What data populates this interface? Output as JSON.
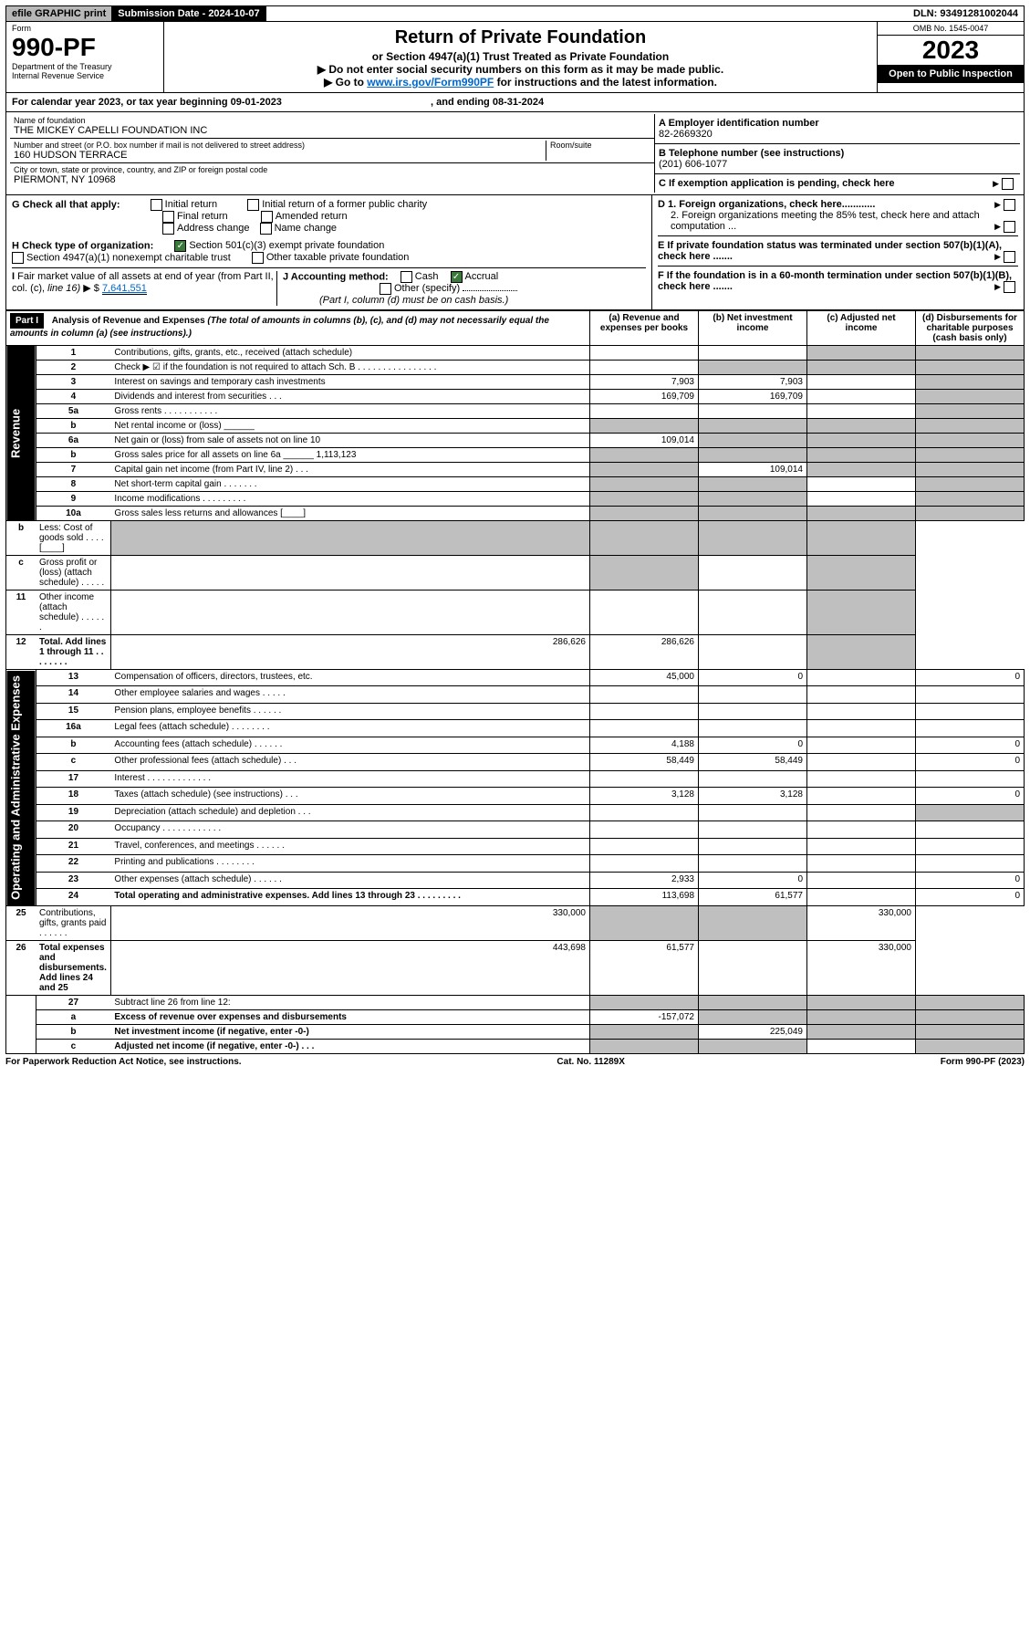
{
  "top": {
    "efile": "efile GRAPHIC print",
    "sub_label": "Submission Date - 2024-10-07",
    "dln": "DLN: 93491281002044"
  },
  "header": {
    "form": "Form",
    "formno": "990-PF",
    "dept": "Department of the Treasury",
    "irs": "Internal Revenue Service",
    "title": "Return of Private Foundation",
    "subtitle": "or Section 4947(a)(1) Trust Treated as Private Foundation",
    "warn1": "▶ Do not enter social security numbers on this form as it may be made public.",
    "warn2": "▶ Go to ",
    "link": "www.irs.gov/Form990PF",
    "warn3": " for instructions and the latest information.",
    "omb": "OMB No. 1545-0047",
    "year": "2023",
    "open": "Open to Public Inspection"
  },
  "period": {
    "pre": "For calendar year 2023, or tax year beginning ",
    "start": "09-01-2023",
    "mid": ", and ending ",
    "end": "08-31-2024"
  },
  "id": {
    "name_lbl": "Name of foundation",
    "name": "THE MICKEY CAPELLI FOUNDATION INC",
    "addr_lbl": "Number and street (or P.O. box number if mail is not delivered to street address)",
    "room_lbl": "Room/suite",
    "addr": "160 HUDSON TERRACE",
    "city_lbl": "City or town, state or province, country, and ZIP or foreign postal code",
    "city": "PIERMONT, NY  10968",
    "ein_lbl": "A Employer identification number",
    "ein": "82-2669320",
    "tel_lbl": "B Telephone number (see instructions)",
    "tel": "(201) 606-1077",
    "c": "C If exemption application is pending, check here",
    "d1": "D 1. Foreign organizations, check here............",
    "d2": "2. Foreign organizations meeting the 85% test, check here and attach computation ...",
    "e": "E  If private foundation status was terminated under section 507(b)(1)(A), check here .......",
    "f": "F  If the foundation is in a 60-month termination under section 507(b)(1)(B), check here ......."
  },
  "g": {
    "lbl": "G Check all that apply:",
    "initial": "Initial return",
    "initial2": "Initial return of a former public charity",
    "final": "Final return",
    "amended": "Amended return",
    "addrchg": "Address change",
    "namechg": "Name change"
  },
  "h": {
    "lbl": "H Check type of organization:",
    "s501": "Section 501(c)(3) exempt private foundation",
    "s4947": "Section 4947(a)(1) nonexempt charitable trust",
    "other": "Other taxable private foundation"
  },
  "i": {
    "lbl": "I Fair market value of all assets at end of year (from Part II, col. (c), line 16) ▶ $",
    "val": "7,641,551"
  },
  "j": {
    "lbl": "J Accounting method:",
    "cash": "Cash",
    "accrual": "Accrual",
    "other": "Other (specify)",
    "note": "(Part I, column (d) must be on cash basis.)"
  },
  "part1": {
    "hdr": "Part I",
    "title": "Analysis of Revenue and Expenses",
    "sub": "(The total of amounts in columns (b), (c), and (d) may not necessarily equal the amounts in column (a) (see instructions).)",
    "col_a": "(a)   Revenue and expenses per books",
    "col_b": "(b)   Net investment income",
    "col_c": "(c)   Adjusted net income",
    "col_d": "(d)   Disbursements for charitable purposes (cash basis only)"
  },
  "sections": {
    "rev": "Revenue",
    "exp": "Operating and Administrative Expenses"
  },
  "rows": [
    {
      "n": "1",
      "d": "Contributions, gifts, grants, etc., received (attach schedule)",
      "a": "",
      "b": "",
      "c": "S",
      "dS": "S"
    },
    {
      "n": "2",
      "d": "Check ▶ ☑ if the foundation is not required to attach Sch. B   .  .  .  .  .  .  .  .  .  .  .  .  .  .  .  .",
      "b": "S",
      "c": "S",
      "dS": "S"
    },
    {
      "n": "3",
      "d": "Interest on savings and temporary cash investments",
      "a": "7,903",
      "b": "7,903",
      "c": "",
      "dS": "S"
    },
    {
      "n": "4",
      "d": "Dividends and interest from securities     .    .    .",
      "a": "169,709",
      "b": "169,709",
      "c": "",
      "dS": "S"
    },
    {
      "n": "5a",
      "d": "Gross rents     .    .    .    .    .    .    .    .    .    .    .",
      "a": "",
      "b": "",
      "c": "",
      "dS": "S"
    },
    {
      "n": "b",
      "d": "Net rental income or (loss)  ______",
      "a": "S",
      "b": "S",
      "c": "S",
      "dS": "S"
    },
    {
      "n": "6a",
      "d": "Net gain or (loss) from sale of assets not on line 10",
      "a": "109,014",
      "b": "S",
      "c": "S",
      "dS": "S"
    },
    {
      "n": "b",
      "d": "Gross sales price for all assets on line 6a ______ 1,113,123",
      "a": "S",
      "b": "S",
      "c": "S",
      "dS": "S"
    },
    {
      "n": "7",
      "d": "Capital gain net income (from Part IV, line 2)     .    .    .",
      "a": "S",
      "b": "109,014",
      "c": "S",
      "dS": "S"
    },
    {
      "n": "8",
      "d": "Net short-term capital gain    .    .    .    .    .    .    .",
      "a": "S",
      "b": "S",
      "c": "",
      "dS": "S"
    },
    {
      "n": "9",
      "d": "Income modifications  .    .    .    .    .    .    .    .    .",
      "a": "S",
      "b": "S",
      "c": "",
      "dS": "S"
    },
    {
      "n": "10a",
      "d": "Gross sales less returns and allowances  [____]",
      "a": "S",
      "b": "S",
      "c": "S",
      "dS": "S"
    },
    {
      "n": "b",
      "d": "Less: Cost of goods sold     .    .    .    .  [____]",
      "a": "S",
      "b": "S",
      "c": "S",
      "dS": "S"
    },
    {
      "n": "c",
      "d": "Gross profit or (loss) (attach schedule)     .    .    .    .    .",
      "a": "",
      "b": "S",
      "c": "",
      "dS": "S"
    },
    {
      "n": "11",
      "d": "Other income (attach schedule)     .    .    .    .    .    .",
      "a": "",
      "b": "",
      "c": "",
      "dS": "S"
    },
    {
      "n": "12",
      "d": "Total. Add lines 1 through 11   .    .    .    .    .    .    .    .",
      "bold": true,
      "a": "286,626",
      "b": "286,626",
      "c": "",
      "dS": "S"
    },
    {
      "n": "13",
      "d": "Compensation of officers, directors, trustees, etc.",
      "a": "45,000",
      "b": "0",
      "c": "",
      "dv": "0",
      "sec": "exp"
    },
    {
      "n": "14",
      "d": "Other employee salaries and wages    .    .    .    .    .",
      "a": "",
      "b": "",
      "c": "",
      "dv": ""
    },
    {
      "n": "15",
      "d": "Pension plans, employee benefits  .    .    .    .    .    .",
      "a": "",
      "b": "",
      "c": "",
      "dv": ""
    },
    {
      "n": "16a",
      "d": "Legal fees (attach schedule)  .    .    .    .    .    .    .    .",
      "a": "",
      "b": "",
      "c": "",
      "dv": ""
    },
    {
      "n": "b",
      "d": "Accounting fees (attach schedule)  .    .    .    .    .    .",
      "a": "4,188",
      "b": "0",
      "c": "",
      "dv": "0"
    },
    {
      "n": "c",
      "d": "Other professional fees (attach schedule)     .    .    .",
      "a": "58,449",
      "b": "58,449",
      "c": "",
      "dv": "0"
    },
    {
      "n": "17",
      "d": "Interest  .    .    .    .    .    .    .    .    .    .    .    .    .",
      "a": "",
      "b": "",
      "c": "",
      "dv": ""
    },
    {
      "n": "18",
      "d": "Taxes (attach schedule) (see instructions)    .    .    .",
      "a": "3,128",
      "b": "3,128",
      "c": "",
      "dv": "0"
    },
    {
      "n": "19",
      "d": "Depreciation (attach schedule) and depletion    .    .    .",
      "a": "",
      "b": "",
      "c": "",
      "dS": "S"
    },
    {
      "n": "20",
      "d": "Occupancy  .    .    .    .    .    .    .    .    .    .    .    .",
      "a": "",
      "b": "",
      "c": "",
      "dv": ""
    },
    {
      "n": "21",
      "d": "Travel, conferences, and meetings  .    .    .    .    .    .",
      "a": "",
      "b": "",
      "c": "",
      "dv": ""
    },
    {
      "n": "22",
      "d": "Printing and publications  .    .    .    .    .    .    .    .",
      "a": "",
      "b": "",
      "c": "",
      "dv": ""
    },
    {
      "n": "23",
      "d": "Other expenses (attach schedule)  .    .    .    .    .    .",
      "a": "2,933",
      "b": "0",
      "c": "",
      "dv": "0"
    },
    {
      "n": "24",
      "d": "Total operating and administrative expenses. Add lines 13 through 23    .    .    .    .    .    .    .    .    .",
      "bold": true,
      "a": "113,698",
      "b": "61,577",
      "c": "",
      "dv": "0"
    },
    {
      "n": "25",
      "d": "Contributions, gifts, grants paid     .    .    .    .    .    .",
      "a": "330,000",
      "b": "S",
      "c": "S",
      "dv": "330,000"
    },
    {
      "n": "26",
      "d": "Total expenses and disbursements. Add lines 24 and 25",
      "bold": true,
      "a": "443,698",
      "b": "61,577",
      "c": "",
      "dv": "330,000"
    },
    {
      "n": "27",
      "d": "Subtract line 26 from line 12:",
      "a": "S",
      "b": "S",
      "c": "S",
      "dS": "S",
      "sec": "none"
    },
    {
      "n": "a",
      "d": "Excess of revenue over expenses and disbursements",
      "bold": true,
      "a": "-157,072",
      "b": "S",
      "c": "S",
      "dS": "S"
    },
    {
      "n": "b",
      "d": "Net investment income (if negative, enter -0-)",
      "bold": true,
      "a": "S",
      "b": "225,049",
      "c": "S",
      "dS": "S"
    },
    {
      "n": "c",
      "d": "Adjusted net income (if negative, enter -0-)   .    .    .",
      "bold": true,
      "a": "S",
      "b": "S",
      "c": "",
      "dS": "S"
    }
  ],
  "foot": {
    "l": "For Paperwork Reduction Act Notice, see instructions.",
    "m": "Cat. No. 11289X",
    "r": "Form 990-PF (2023)"
  }
}
